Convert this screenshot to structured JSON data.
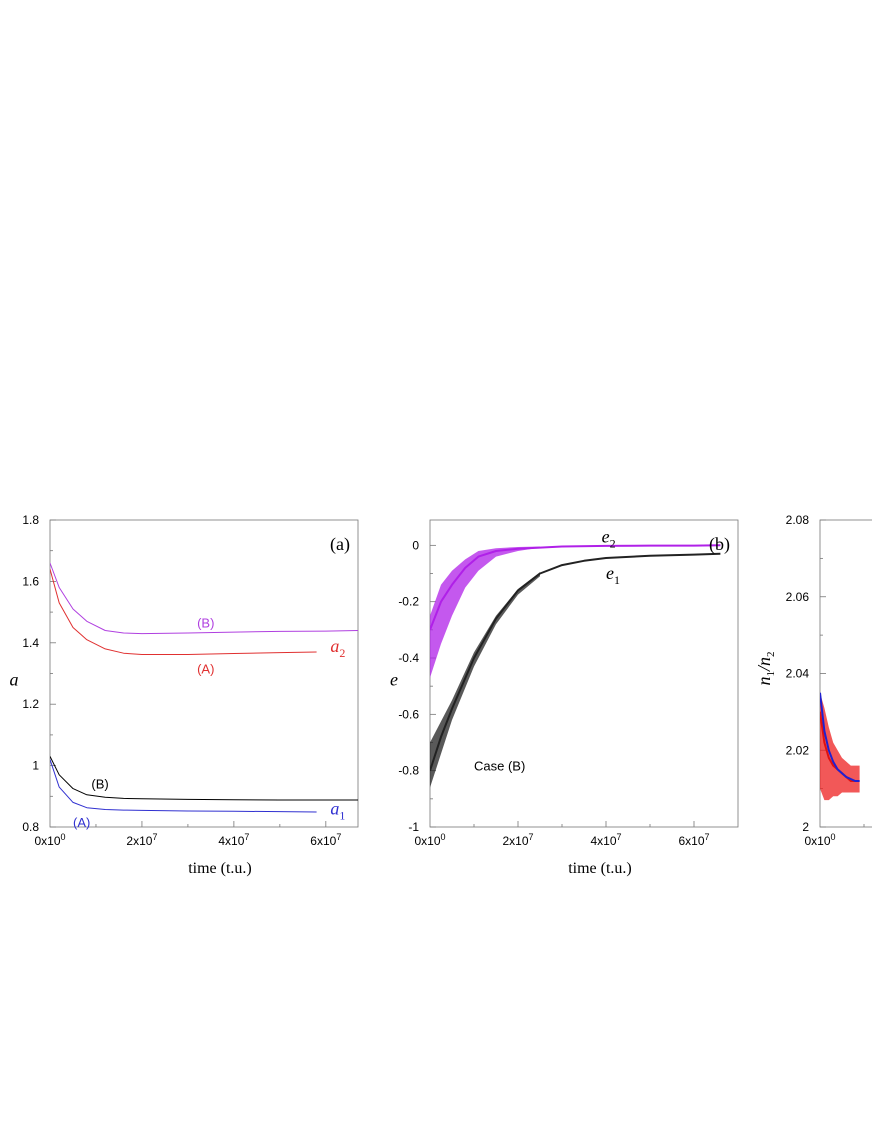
{
  "chart_data": [
    {
      "type": "line",
      "panel_label": "(a)",
      "xlabel": "time (t.u.)",
      "ylabel": "a",
      "xlim": [
        0,
        67000000
      ],
      "ylim": [
        0.8,
        1.8
      ],
      "x_ticks": [
        0,
        20000000,
        40000000,
        60000000
      ],
      "x_tick_labels": [
        {
          "base": "0x10",
          "exp": "0"
        },
        {
          "base": "2x10",
          "exp": "7"
        },
        {
          "base": "4x10",
          "exp": "7"
        },
        {
          "base": "6x10",
          "exp": "7"
        }
      ],
      "y_ticks": [
        0.8,
        1,
        1.2,
        1.4,
        1.6,
        1.8
      ],
      "y_tick_labels": [
        "0.8",
        "1",
        "1.2",
        "1.4",
        "1.6",
        "1.8"
      ],
      "series": [
        {
          "color": "#b040e0",
          "x": [
            0,
            2000000,
            5000000,
            8000000,
            12000000,
            16000000,
            20000000,
            30000000,
            40000000,
            50000000,
            60000000,
            67000000
          ],
          "y": [
            1.66,
            1.58,
            1.51,
            1.47,
            1.44,
            1.432,
            1.43,
            1.432,
            1.435,
            1.437,
            1.438,
            1.44
          ]
        },
        {
          "color": "#e03030",
          "x": [
            0,
            2000000,
            5000000,
            8000000,
            12000000,
            16000000,
            20000000,
            30000000,
            40000000,
            50000000,
            58000000
          ],
          "y": [
            1.64,
            1.53,
            1.45,
            1.41,
            1.38,
            1.366,
            1.362,
            1.362,
            1.365,
            1.368,
            1.37
          ]
        },
        {
          "color": "#000000",
          "x": [
            0,
            2000000,
            5000000,
            8000000,
            12000000,
            16000000,
            20000000,
            30000000,
            40000000,
            50000000,
            60000000,
            67000000
          ],
          "y": [
            1.03,
            0.97,
            0.925,
            0.905,
            0.897,
            0.893,
            0.892,
            0.89,
            0.889,
            0.888,
            0.888,
            0.888
          ]
        },
        {
          "color": "#3030d0",
          "x": [
            0,
            2000000,
            5000000,
            8000000,
            12000000,
            16000000,
            20000000,
            30000000,
            40000000,
            50000000,
            58000000
          ],
          "y": [
            1.02,
            0.93,
            0.88,
            0.863,
            0.857,
            0.855,
            0.854,
            0.852,
            0.851,
            0.85,
            0.849
          ]
        }
      ],
      "annotations": [
        {
          "text": "(B)",
          "color": "#b040e0",
          "x": 32000000,
          "y": 1.45
        },
        {
          "text": "(A)",
          "color": "#e03030",
          "x": 32000000,
          "y": 1.3
        },
        {
          "text": "(B)",
          "color": "#000000",
          "x": 9000000,
          "y": 0.925
        },
        {
          "text": "(A)",
          "color": "#3030d0",
          "x": 5000000,
          "y": 0.8
        }
      ],
      "curve_labels": [
        {
          "base": "a",
          "sub": "2",
          "color": "#e03030",
          "x": 61000000,
          "y": 1.37
        },
        {
          "base": "a",
          "sub": "1",
          "color": "#3030d0",
          "x": 61000000,
          "y": 0.84
        }
      ]
    },
    {
      "type": "line",
      "panel_label": "(b)",
      "xlabel": "time (t.u.)",
      "ylabel": "e",
      "xlim": [
        0,
        70000000
      ],
      "ylim": [
        -1,
        0.09
      ],
      "x_ticks": [
        0,
        20000000,
        40000000,
        60000000
      ],
      "x_tick_labels": [
        {
          "base": "0x10",
          "exp": "0"
        },
        {
          "base": "2x10",
          "exp": "7"
        },
        {
          "base": "4x10",
          "exp": "7"
        },
        {
          "base": "6x10",
          "exp": "7"
        }
      ],
      "y_ticks": [
        -1,
        -0.8,
        -0.6,
        -0.4,
        -0.2,
        0
      ],
      "y_tick_labels": [
        "-1",
        "-0.8",
        "-0.6",
        "-0.4",
        "-0.2",
        "0"
      ],
      "series": [
        {
          "color": "#222222",
          "x": [
            0,
            2500000,
            5000000,
            10000000,
            15000000,
            20000000,
            25000000,
            30000000,
            35000000,
            40000000,
            50000000,
            60000000,
            66000000
          ],
          "y": [
            -0.8,
            -0.68,
            -0.58,
            -0.4,
            -0.26,
            -0.16,
            -0.1,
            -0.07,
            -0.055,
            -0.045,
            -0.037,
            -0.033,
            -0.03
          ]
        },
        {
          "color": "#b020e8",
          "x": [
            0,
            2500000,
            5000000,
            8000000,
            11000000,
            15000000,
            20000000,
            25000000,
            30000000,
            40000000,
            50000000,
            60000000,
            66000000
          ],
          "y": [
            -0.3,
            -0.2,
            -0.14,
            -0.08,
            -0.04,
            -0.02,
            -0.012,
            -0.008,
            -0.004,
            -0.002,
            -0.001,
            -0.001,
            0
          ]
        }
      ],
      "bands": [
        {
          "color": "#b020e8",
          "x": [
            0,
            2500000,
            5000000,
            8000000,
            11000000,
            15000000,
            20000000,
            25000000
          ],
          "upper": [
            -0.25,
            -0.14,
            -0.09,
            -0.05,
            -0.02,
            -0.01,
            -0.006,
            -0.004
          ],
          "lower": [
            -0.47,
            -0.35,
            -0.25,
            -0.15,
            -0.09,
            -0.04,
            -0.02,
            -0.008
          ]
        },
        {
          "color": "#222222",
          "x": [
            0,
            5000000,
            10000000,
            15000000,
            20000000,
            25000000
          ],
          "upper": [
            -0.7,
            -0.55,
            -0.38,
            -0.25,
            -0.155,
            -0.095
          ],
          "lower": [
            -0.86,
            -0.62,
            -0.43,
            -0.28,
            -0.175,
            -0.11
          ]
        }
      ],
      "annotations": [
        {
          "text": "Case (B)",
          "color": "#000000",
          "x": 10000000,
          "y": -0.8
        }
      ],
      "curve_labels": [
        {
          "base": "e",
          "sub": "2",
          "color": "#000000",
          "x": 39000000,
          "y": 0.01
        },
        {
          "base": "e",
          "sub": "1",
          "color": "#000000",
          "x": 40000000,
          "y": -0.12
        }
      ]
    },
    {
      "type": "line",
      "ylabel_base": "n",
      "ylabel_sub1": "1",
      "ylabel_mid": "/n",
      "ylabel_sub2": "2",
      "xlim": [
        0,
        70000000
      ],
      "ylim": [
        2,
        2.08
      ],
      "x_ticks": [
        0
      ],
      "x_tick_labels": [
        {
          "base": "0x10",
          "exp": "0"
        }
      ],
      "y_ticks": [
        2,
        2.02,
        2.04,
        2.06,
        2.08
      ],
      "y_tick_labels": [
        "2",
        "2.02",
        "2.04",
        "2.06",
        "2.08"
      ],
      "series": [
        {
          "color": "#e01010",
          "x": [
            0,
            1000000,
            2000000,
            3000000,
            4000000,
            5000000,
            6000000,
            7000000,
            8000000,
            9000000
          ],
          "y": [
            2.03,
            2.022,
            2.018,
            2.016,
            2.015,
            2.014,
            2.013,
            2.012,
            2.012,
            2.012
          ]
        },
        {
          "color": "#2020d0",
          "x": [
            0,
            1000000,
            2000000,
            3000000,
            4000000,
            5000000,
            6000000,
            7000000,
            8000000,
            9000000
          ],
          "y": [
            2.035,
            2.025,
            2.02,
            2.017,
            2.015,
            2.014,
            2.013,
            2.0125,
            2.012,
            2.012
          ]
        }
      ],
      "bands": [
        {
          "color": "#ee2020",
          "x": [
            0,
            1000000,
            2000000,
            3000000,
            4000000,
            5000000,
            6000000,
            7000000,
            8000000,
            9000000
          ],
          "upper": [
            2.035,
            2.031,
            2.026,
            2.022,
            2.02,
            2.018,
            2.017,
            2.016,
            2.016,
            2.016
          ],
          "lower": [
            2.01,
            2.007,
            2.007,
            2.008,
            2.008,
            2.009,
            2.009,
            2.009,
            2.009,
            2.009
          ]
        }
      ]
    }
  ]
}
